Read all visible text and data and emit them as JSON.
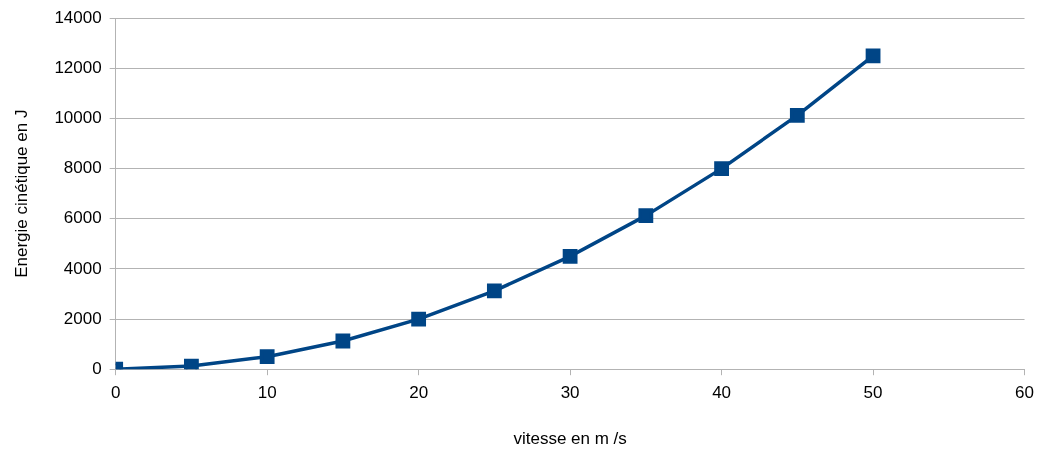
{
  "chart_data": {
    "type": "line",
    "xlabel": "vitesse en m /s",
    "ylabel": "Energie cinétique en J",
    "x": [
      0,
      5,
      10,
      15,
      20,
      25,
      30,
      35,
      40,
      45,
      50
    ],
    "series": [
      {
        "color": "#004586",
        "values": [
          0,
          125,
          500,
          1125,
          2000,
          3125,
          4500,
          6125,
          8000,
          10125,
          12500
        ]
      }
    ],
    "xlim": [
      0,
      60
    ],
    "xticks": [
      0,
      10,
      20,
      30,
      40,
      50,
      60
    ],
    "ylim": [
      0,
      14000
    ],
    "yticks": [
      0,
      2000,
      4000,
      6000,
      8000,
      10000,
      12000,
      14000
    ],
    "grid": "y",
    "legend": false,
    "marker": "square",
    "line_style": "solid"
  }
}
